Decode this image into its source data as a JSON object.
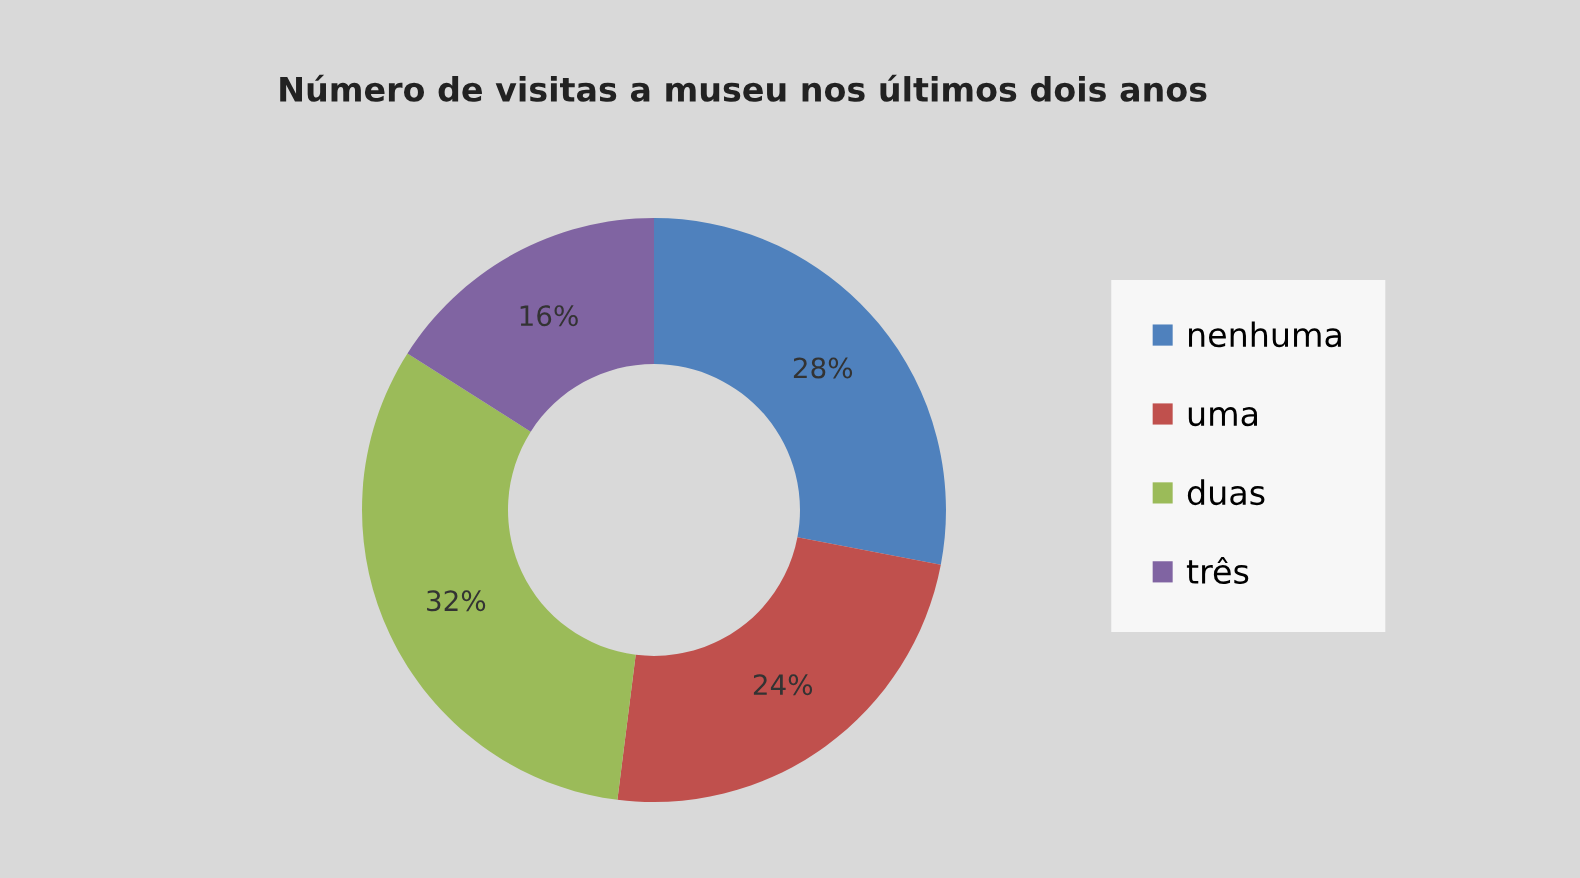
{
  "chart_data": {
    "type": "donut",
    "title": "Número de visitas a museu nos últimos dois anos",
    "categories": [
      "nenhuma",
      "uma",
      "duas",
      "três"
    ],
    "values": [
      28,
      24,
      32,
      16
    ],
    "colors": [
      "#4f81bd",
      "#c0504d",
      "#9bbb59",
      "#8064a2"
    ],
    "value_labels": [
      "28%",
      "24%",
      "32%",
      "16%"
    ],
    "legend": "right"
  }
}
